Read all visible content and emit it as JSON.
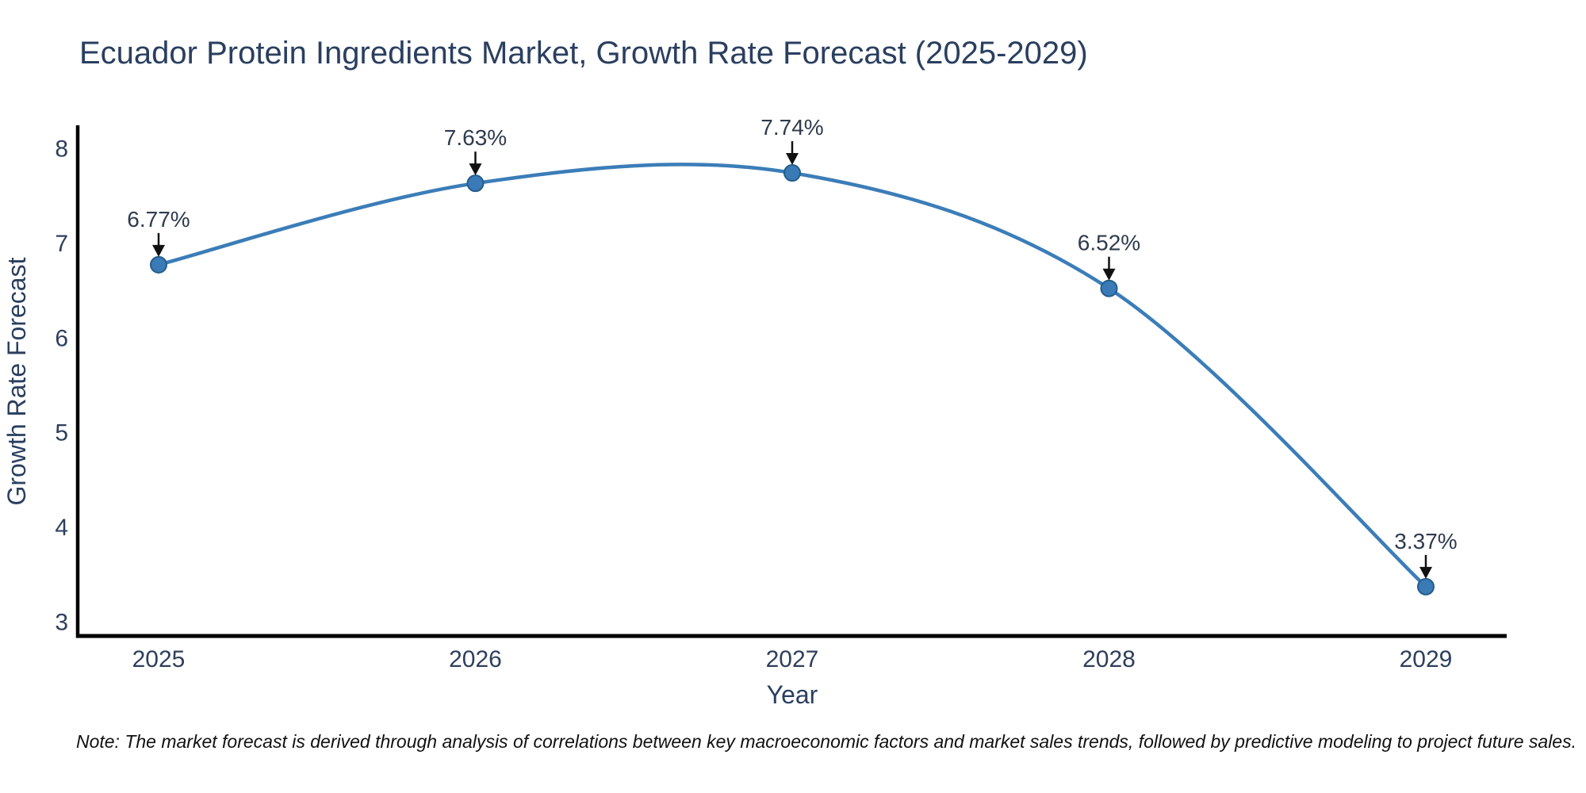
{
  "note": "Note: The market forecast is derived through analysis of correlations between key macroeconomic factors and market sales trends, followed by predictive modeling to project future sales.",
  "chart_data": {
    "type": "line",
    "title": "Ecuador Protein Ingredients Market, Growth Rate Forecast (2025-2029)",
    "xlabel": "Year",
    "ylabel": "Growth Rate Forecast",
    "x": [
      "2025",
      "2026",
      "2027",
      "2028",
      "2029"
    ],
    "series": [
      {
        "name": "Growth Rate Forecast",
        "values": [
          6.77,
          7.63,
          7.74,
          6.52,
          3.37
        ]
      }
    ],
    "point_labels": [
      "6.77%",
      "7.63%",
      "7.74%",
      "6.52%",
      "3.37%"
    ],
    "yticks": [
      3,
      4,
      5,
      6,
      7,
      8
    ],
    "ylim": [
      2.85,
      8.4
    ],
    "line_shape": "spline",
    "grid": false,
    "legend_position": "none",
    "annotation_style": "label-with-down-arrow",
    "colors": {
      "line": "#3b7db8",
      "marker_fill": "#3a7ab6",
      "marker_edge": "#235d8c",
      "axis_line": "#000000",
      "title_text": "#2a3f5f",
      "tick_text": "#2e3f5c",
      "annotation_text": "#2f3a4e",
      "arrow": "#111111",
      "note_text": "#111111",
      "background": "#ffffff"
    }
  }
}
